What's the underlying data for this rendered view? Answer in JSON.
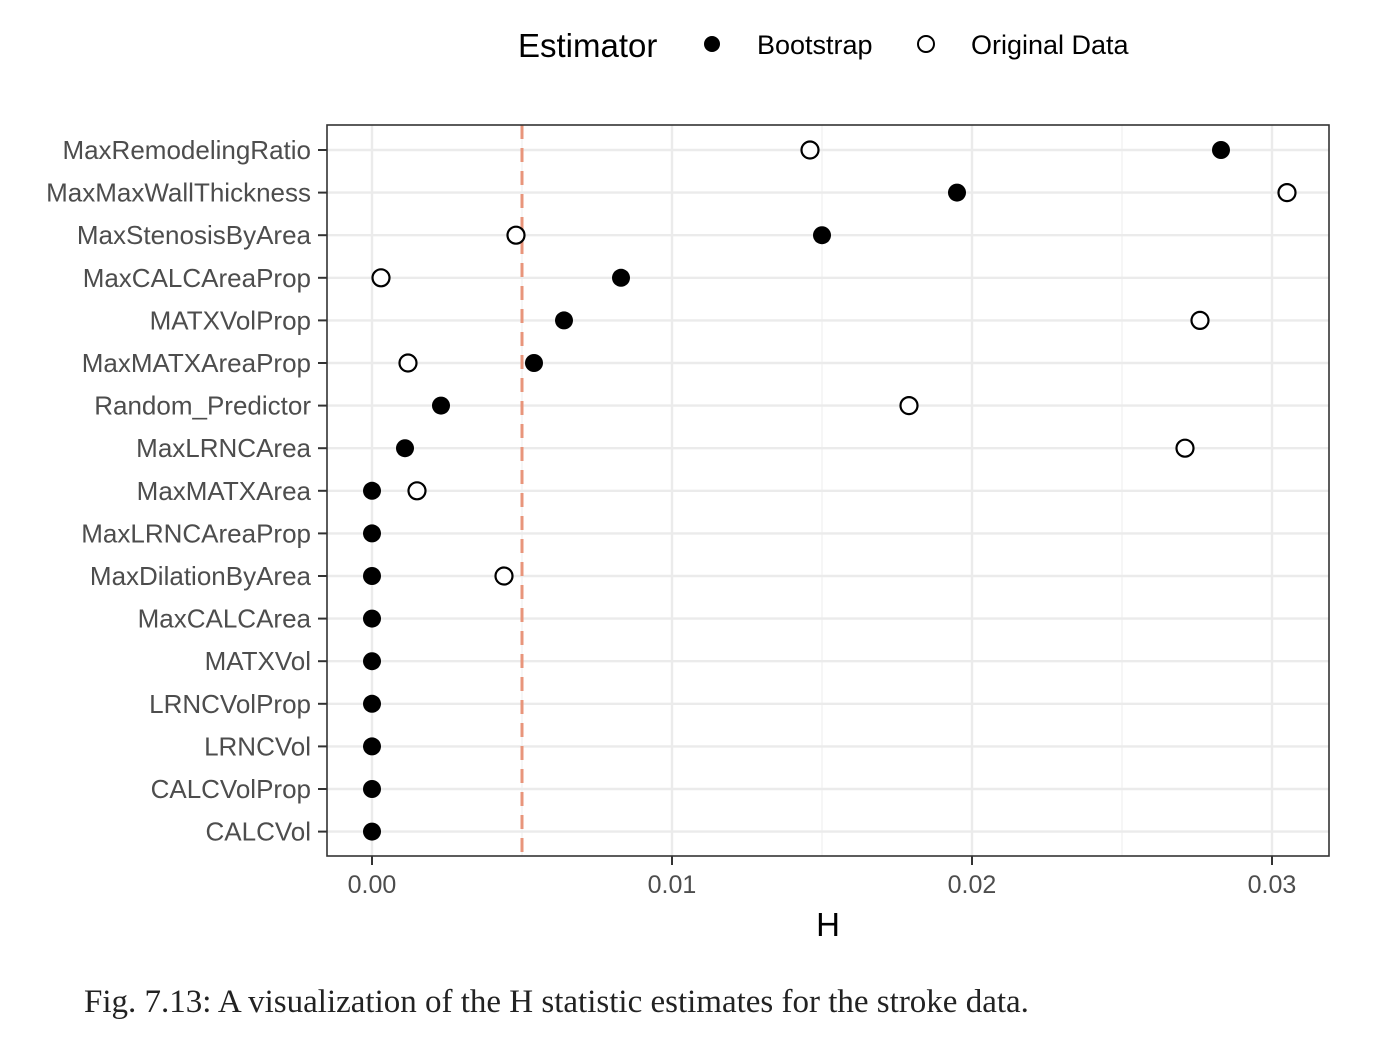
{
  "chart_data": {
    "type": "scatter",
    "xlabel": "H",
    "ylabel": "",
    "xlim": [
      -0.0015,
      0.0319
    ],
    "xticks": [
      0.0,
      0.01,
      0.02,
      0.03
    ],
    "xtick_labels": [
      "0.00",
      "0.01",
      "0.02",
      "0.03"
    ],
    "grid": true,
    "legend": {
      "title": "Estimator",
      "placement": "top",
      "entries": [
        "Bootstrap",
        "Original Data"
      ]
    },
    "reference_line": {
      "x": 0.005,
      "style": "dashed",
      "color": "#e8957b"
    },
    "categories": [
      "MaxRemodelingRatio",
      "MaxMaxWallThickness",
      "MaxStenosisByArea",
      "MaxCALCAreaProp",
      "MATXVolProp",
      "MaxMATXAreaProp",
      "Random_Predictor",
      "MaxLRNCArea",
      "MaxMATXArea",
      "MaxLRNCAreaProp",
      "MaxDilationByArea",
      "MaxCALCArea",
      "MATXVol",
      "LRNCVolProp",
      "LRNCVol",
      "CALCVolProp",
      "CALCVol"
    ],
    "series": [
      {
        "name": "Bootstrap",
        "marker": "filled",
        "values": [
          0.0283,
          0.0195,
          0.015,
          0.0083,
          0.0064,
          0.0054,
          0.0023,
          0.0011,
          0.0,
          0.0,
          0.0,
          0.0,
          0.0,
          0.0,
          0.0,
          0.0,
          0.0
        ]
      },
      {
        "name": "Original Data",
        "marker": "open",
        "values": [
          0.0146,
          0.0305,
          0.0048,
          0.0003,
          0.0276,
          0.0012,
          0.0179,
          0.0271,
          0.0015,
          null,
          0.0044,
          null,
          null,
          null,
          null,
          null,
          null
        ]
      }
    ]
  },
  "caption": "Fig. 7.13: A visualization of the H statistic estimates for the stroke data."
}
